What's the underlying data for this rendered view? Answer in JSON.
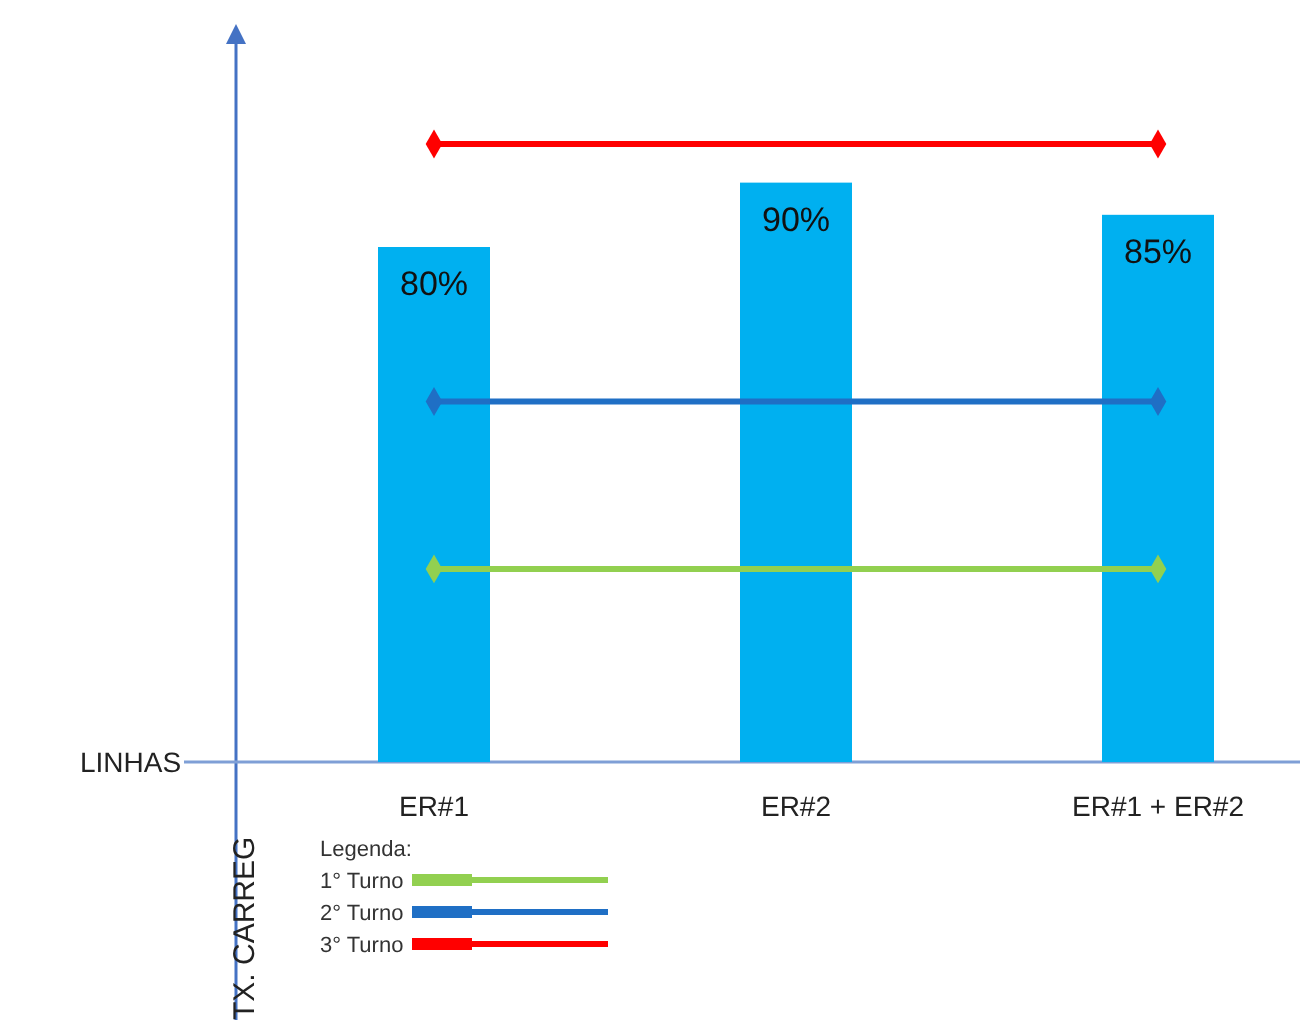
{
  "chart_data": {
    "type": "bar",
    "ylabel": "TX. CARREG",
    "annotations": [
      "LINHAS"
    ],
    "legend_title": "Legenda:",
    "legend": "bottom left",
    "marker": "diamond",
    "tick_labels": "x",
    "categories": [
      "ER#1",
      "ER#2",
      "ER#1 + ER#2"
    ],
    "series": [
      {
        "color": "#00b0f0",
        "values": [
          80,
          90,
          85
        ],
        "value_labels": [
          "80%",
          "90%",
          "85%"
        ]
      },
      {
        "type": "line",
        "name": "1° Turno",
        "color": "#92d050",
        "x": [
          "ER#1",
          "ER#1 + ER#2"
        ],
        "values": [
          30,
          30
        ]
      },
      {
        "type": "line",
        "name": "2° Turno",
        "color": "#1f6fc5",
        "x": [
          "ER#1",
          "ER#1 + ER#2"
        ],
        "values": [
          56,
          56
        ]
      },
      {
        "type": "line",
        "name": "3° Turno",
        "color": "#ff0000",
        "x": [
          "ER#1",
          "ER#1 + ER#2"
        ],
        "values": [
          96,
          96
        ]
      }
    ]
  }
}
